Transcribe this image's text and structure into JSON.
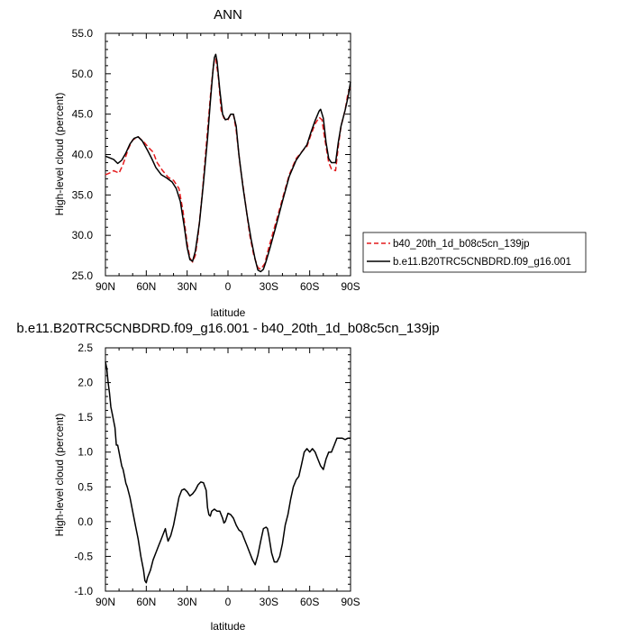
{
  "chart_data": [
    {
      "type": "line",
      "title": "ANN",
      "xlabel": "latitude",
      "ylabel": "High-level cloud (percent)",
      "xlim": [
        90,
        -90
      ],
      "ylim": [
        25.0,
        55.0
      ],
      "x_ticks": [
        90,
        60,
        30,
        0,
        -30,
        -60,
        -90
      ],
      "x_tick_labels": [
        "90N",
        "60N",
        "30N",
        "0",
        "30S",
        "60S",
        "90S"
      ],
      "y_ticks": [
        25.0,
        30.0,
        35.0,
        40.0,
        45.0,
        50.0,
        55.0
      ],
      "y_tick_labels": [
        "25.0",
        "30.0",
        "35.0",
        "40.0",
        "45.0",
        "50.0",
        "55.0"
      ],
      "grid": false,
      "legend_position": "outside-right",
      "series": [
        {
          "name": "b40_20th_1d_b08c5cn_139jp",
          "color": "#e41a1c",
          "dash": "dashed",
          "points": [
            [
              90,
              37.5
            ],
            [
              87,
              37.7
            ],
            [
              84,
              38.0
            ],
            [
              80,
              37.7
            ],
            [
              77,
              38.8
            ],
            [
              73,
              40.8
            ],
            [
              70,
              41.8
            ],
            [
              66,
              42.2
            ],
            [
              62,
              41.6
            ],
            [
              58,
              40.8
            ],
            [
              55,
              40.3
            ],
            [
              52,
              39.0
            ],
            [
              48,
              38.0
            ],
            [
              44,
              37.2
            ],
            [
              40,
              36.8
            ],
            [
              36,
              35.8
            ],
            [
              33,
              33.0
            ],
            [
              30,
              29.0
            ],
            [
              28,
              27.2
            ],
            [
              26,
              26.7
            ],
            [
              24,
              27.5
            ],
            [
              22,
              30.0
            ],
            [
              19,
              35.0
            ],
            [
              16,
              41.0
            ],
            [
              14,
              45.0
            ],
            [
              12,
              49.0
            ],
            [
              10,
              51.8
            ],
            [
              9,
              51.9
            ],
            [
              7,
              49.5
            ],
            [
              5,
              45.5
            ],
            [
              3,
              44.5
            ],
            [
              0,
              44.3
            ],
            [
              -2,
              45.0
            ],
            [
              -4,
              45.0
            ],
            [
              -6,
              43.0
            ],
            [
              -9,
              38.5
            ],
            [
              -12,
              35.0
            ],
            [
              -16,
              30.0
            ],
            [
              -19,
              27.5
            ],
            [
              -22,
              26.0
            ],
            [
              -24,
              25.8
            ],
            [
              -27,
              26.5
            ],
            [
              -30,
              28.5
            ],
            [
              -35,
              31.5
            ],
            [
              -40,
              34.5
            ],
            [
              -45,
              37.5
            ],
            [
              -50,
              39.5
            ],
            [
              -55,
              40.5
            ],
            [
              -58,
              41.0
            ],
            [
              -61,
              42.5
            ],
            [
              -64,
              43.8
            ],
            [
              -67,
              44.6
            ],
            [
              -69,
              44.3
            ],
            [
              -71,
              42.0
            ],
            [
              -74,
              39.0
            ],
            [
              -76,
              38.2
            ],
            [
              -79,
              38.0
            ],
            [
              -81,
              41.0
            ],
            [
              -83,
              43.5
            ],
            [
              -86,
              45.5
            ],
            [
              -88,
              47.5
            ],
            [
              -90,
              48.5
            ]
          ]
        },
        {
          "name": "b.e11.B20TRC5CNBDRD.f09_g16.001",
          "color": "#000000",
          "dash": "solid",
          "points": [
            [
              90,
              39.8
            ],
            [
              87,
              39.6
            ],
            [
              84,
              39.4
            ],
            [
              81,
              38.9
            ],
            [
              78,
              39.3
            ],
            [
              75,
              40.2
            ],
            [
              72,
              41.3
            ],
            [
              69,
              42.0
            ],
            [
              66,
              42.2
            ],
            [
              63,
              41.7
            ],
            [
              59,
              40.5
            ],
            [
              56,
              39.5
            ],
            [
              53,
              38.4
            ],
            [
              49,
              37.5
            ],
            [
              45,
              37.1
            ],
            [
              41,
              36.6
            ],
            [
              38,
              35.8
            ],
            [
              35,
              34.2
            ],
            [
              32,
              31.0
            ],
            [
              30,
              28.5
            ],
            [
              28,
              27.0
            ],
            [
              26,
              26.8
            ],
            [
              24,
              28.0
            ],
            [
              21,
              31.5
            ],
            [
              18,
              36.5
            ],
            [
              15,
              42.0
            ],
            [
              13,
              46.5
            ],
            [
              11,
              50.5
            ],
            [
              10,
              52.0
            ],
            [
              9,
              52.4
            ],
            [
              8,
              51.5
            ],
            [
              6,
              48.0
            ],
            [
              4,
              45.0
            ],
            [
              2,
              44.3
            ],
            [
              0,
              44.4
            ],
            [
              -2,
              45.0
            ],
            [
              -4,
              45.0
            ],
            [
              -6,
              43.5
            ],
            [
              -8,
              40.0
            ],
            [
              -11,
              36.0
            ],
            [
              -14,
              32.5
            ],
            [
              -17,
              29.5
            ],
            [
              -20,
              27.0
            ],
            [
              -22,
              25.7
            ],
            [
              -24,
              25.5
            ],
            [
              -26,
              25.8
            ],
            [
              -28,
              26.8
            ],
            [
              -31,
              28.5
            ],
            [
              -35,
              31.0
            ],
            [
              -40,
              34.2
            ],
            [
              -45,
              37.3
            ],
            [
              -50,
              39.3
            ],
            [
              -55,
              40.5
            ],
            [
              -58,
              41.2
            ],
            [
              -61,
              42.8
            ],
            [
              -64,
              44.2
            ],
            [
              -67,
              45.4
            ],
            [
              -68,
              45.6
            ],
            [
              -70,
              44.5
            ],
            [
              -72,
              41.5
            ],
            [
              -74,
              39.5
            ],
            [
              -76,
              39.0
            ],
            [
              -79,
              39.0
            ],
            [
              -81,
              41.5
            ],
            [
              -83,
              43.5
            ],
            [
              -86,
              45.5
            ],
            [
              -88,
              47.0
            ],
            [
              -90,
              49.0
            ]
          ]
        }
      ]
    },
    {
      "type": "line",
      "title": "b.e11.B20TRC5CNBDRD.f09_g16.001 - b40_20th_1d_b08c5cn_139jp",
      "xlabel": "latitude",
      "ylabel": "High-level cloud (percent)",
      "xlim": [
        90,
        -90
      ],
      "ylim": [
        -1.0,
        2.5
      ],
      "x_ticks": [
        90,
        60,
        30,
        0,
        -30,
        -60,
        -90
      ],
      "x_tick_labels": [
        "90N",
        "60N",
        "30N",
        "0",
        "30S",
        "60S",
        "90S"
      ],
      "y_ticks": [
        -1.0,
        -0.5,
        0.0,
        0.5,
        1.0,
        1.5,
        2.0,
        2.5
      ],
      "y_tick_labels": [
        "-1.0",
        "-0.5",
        "0.0",
        "0.5",
        "1.0",
        "1.5",
        "2.0",
        "2.5"
      ],
      "grid": false,
      "series": [
        {
          "color": "#000000",
          "dash": "solid",
          "points": [
            [
              90,
              2.3
            ],
            [
              89,
              2.2
            ],
            [
              88,
              2.0
            ],
            [
              87,
              1.85
            ],
            [
              86,
              1.65
            ],
            [
              85,
              1.55
            ],
            [
              84,
              1.45
            ],
            [
              83,
              1.35
            ],
            [
              82,
              1.1
            ],
            [
              81,
              1.1
            ],
            [
              80,
              1.0
            ],
            [
              79,
              0.9
            ],
            [
              78,
              0.8
            ],
            [
              77,
              0.75
            ],
            [
              76,
              0.65
            ],
            [
              75,
              0.55
            ],
            [
              74,
              0.5
            ],
            [
              72,
              0.35
            ],
            [
              70,
              0.15
            ],
            [
              68,
              -0.05
            ],
            [
              66,
              -0.25
            ],
            [
              64,
              -0.5
            ],
            [
              62,
              -0.7
            ],
            [
              61,
              -0.85
            ],
            [
              60,
              -0.88
            ],
            [
              59,
              -0.8
            ],
            [
              57,
              -0.7
            ],
            [
              55,
              -0.55
            ],
            [
              53,
              -0.45
            ],
            [
              51,
              -0.35
            ],
            [
              49,
              -0.25
            ],
            [
              47,
              -0.15
            ],
            [
              46,
              -0.1
            ],
            [
              45,
              -0.2
            ],
            [
              44,
              -0.28
            ],
            [
              42,
              -0.2
            ],
            [
              40,
              -0.05
            ],
            [
              38,
              0.15
            ],
            [
              36,
              0.35
            ],
            [
              34,
              0.45
            ],
            [
              32,
              0.47
            ],
            [
              30,
              0.43
            ],
            [
              28,
              0.37
            ],
            [
              26,
              0.4
            ],
            [
              24,
              0.45
            ],
            [
              22,
              0.53
            ],
            [
              20,
              0.57
            ],
            [
              18,
              0.56
            ],
            [
              16,
              0.45
            ],
            [
              15,
              0.2
            ],
            [
              14,
              0.1
            ],
            [
              13,
              0.08
            ],
            [
              12,
              0.15
            ],
            [
              10,
              0.18
            ],
            [
              8,
              0.15
            ],
            [
              6,
              0.15
            ],
            [
              4,
              0.05
            ],
            [
              3,
              -0.02
            ],
            [
              2,
              0.0
            ],
            [
              0,
              0.12
            ],
            [
              -2,
              0.1
            ],
            [
              -4,
              0.05
            ],
            [
              -6,
              -0.05
            ],
            [
              -8,
              -0.12
            ],
            [
              -10,
              -0.15
            ],
            [
              -12,
              -0.25
            ],
            [
              -14,
              -0.35
            ],
            [
              -16,
              -0.45
            ],
            [
              -18,
              -0.55
            ],
            [
              -20,
              -0.62
            ],
            [
              -22,
              -0.48
            ],
            [
              -24,
              -0.28
            ],
            [
              -26,
              -0.1
            ],
            [
              -28,
              -0.08
            ],
            [
              -29,
              -0.1
            ],
            [
              -30,
              -0.2
            ],
            [
              -32,
              -0.45
            ],
            [
              -34,
              -0.58
            ],
            [
              -36,
              -0.58
            ],
            [
              -38,
              -0.5
            ],
            [
              -40,
              -0.32
            ],
            [
              -42,
              -0.05
            ],
            [
              -44,
              0.1
            ],
            [
              -46,
              0.32
            ],
            [
              -48,
              0.5
            ],
            [
              -50,
              0.6
            ],
            [
              -52,
              0.65
            ],
            [
              -54,
              0.82
            ],
            [
              -56,
              1.0
            ],
            [
              -58,
              1.05
            ],
            [
              -60,
              1.0
            ],
            [
              -62,
              1.05
            ],
            [
              -64,
              1.0
            ],
            [
              -66,
              0.9
            ],
            [
              -68,
              0.8
            ],
            [
              -70,
              0.75
            ],
            [
              -72,
              0.9
            ],
            [
              -74,
              1.0
            ],
            [
              -76,
              1.0
            ],
            [
              -78,
              1.1
            ],
            [
              -80,
              1.2
            ],
            [
              -82,
              1.2
            ],
            [
              -84,
              1.2
            ],
            [
              -86,
              1.18
            ],
            [
              -88,
              1.2
            ],
            [
              -90,
              1.2
            ]
          ]
        }
      ]
    }
  ]
}
